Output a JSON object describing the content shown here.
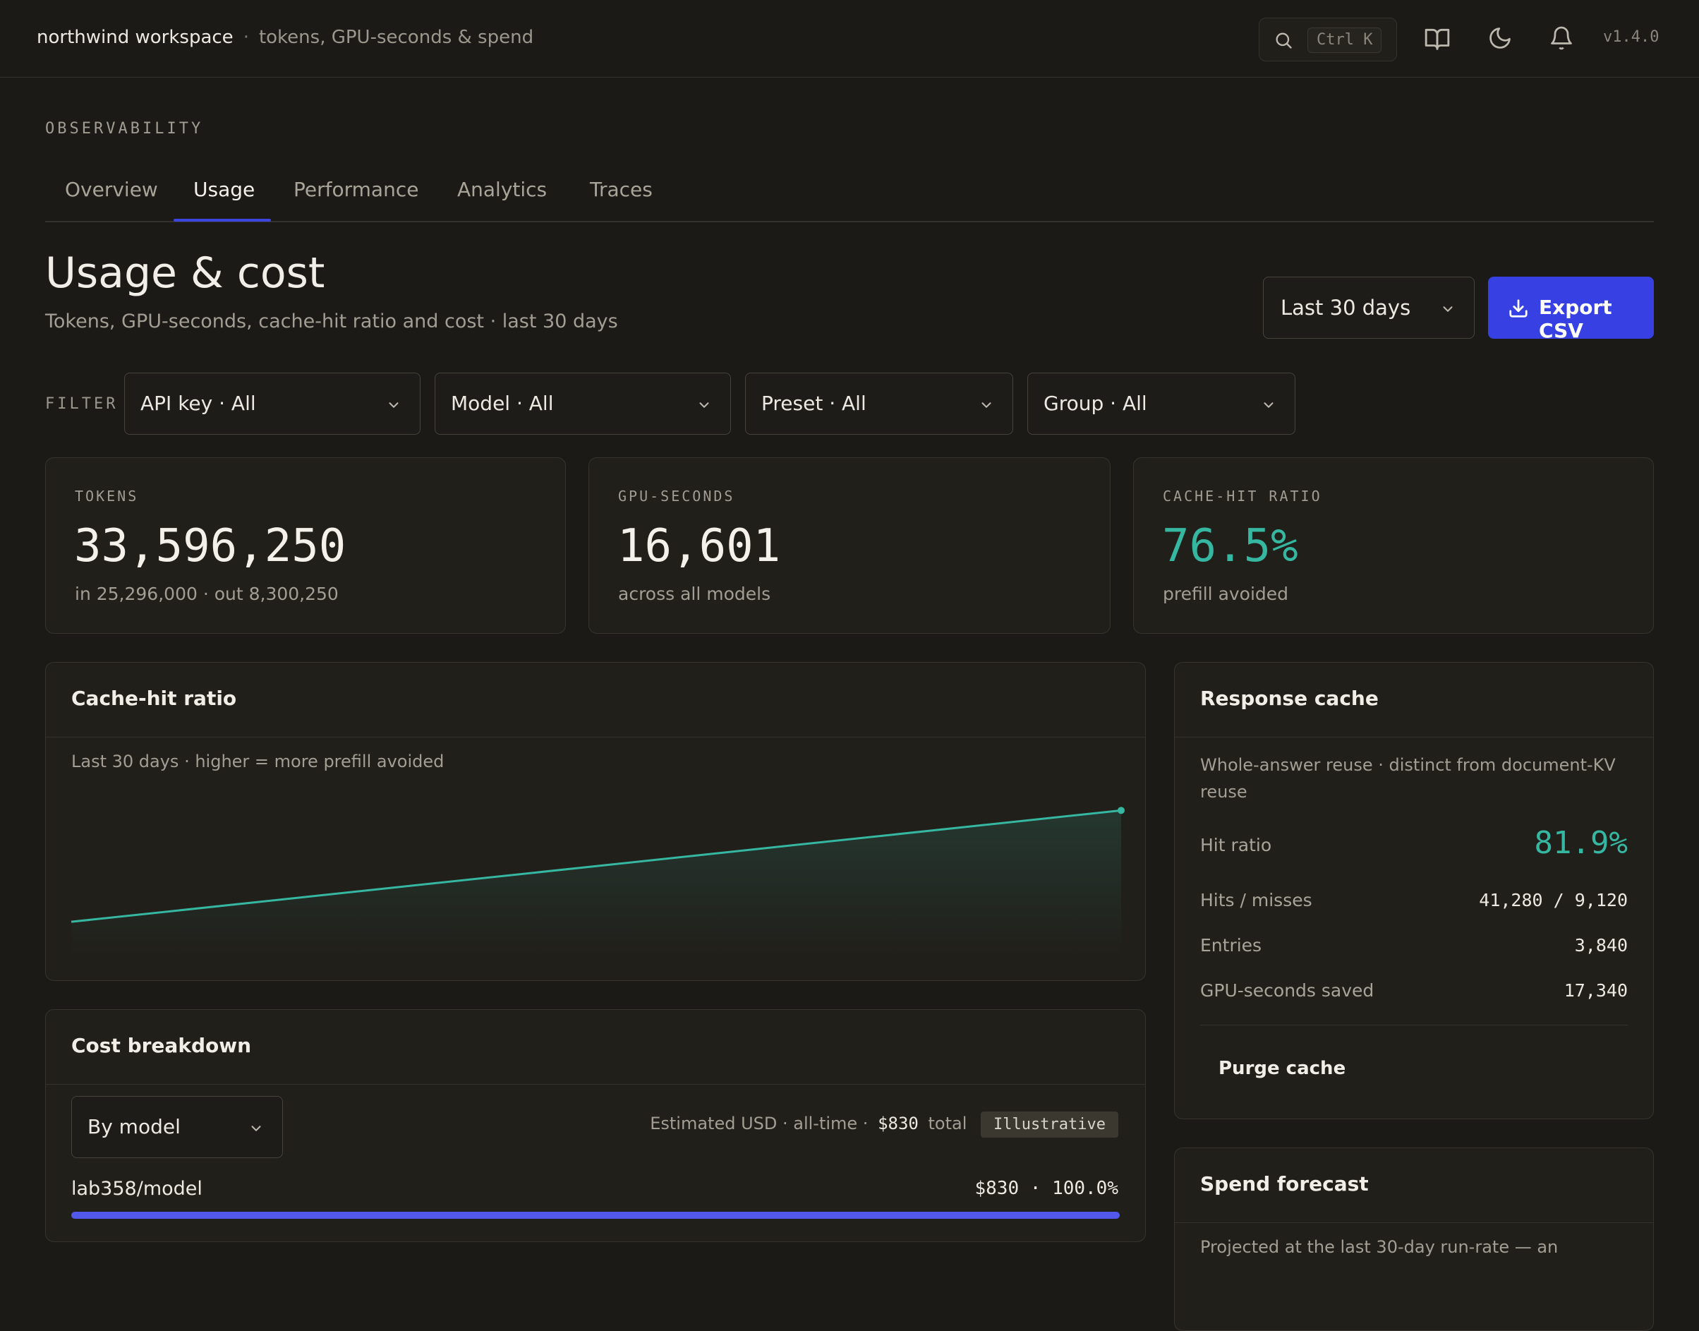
{
  "topbar": {
    "workspace": "northwind workspace",
    "separator": "·",
    "context": "tokens, GPU-seconds & spend",
    "search_shortcut": "Ctrl K",
    "version": "v1.4.0"
  },
  "section_label": "OBSERVABILITY",
  "tabs": [
    {
      "label": "Overview",
      "active": false
    },
    {
      "label": "Usage",
      "active": true
    },
    {
      "label": "Performance",
      "active": false
    },
    {
      "label": "Analytics",
      "active": false
    },
    {
      "label": "Traces",
      "active": false
    }
  ],
  "page": {
    "title": "Usage & cost",
    "subtitle": "Tokens, GPU-seconds, cache-hit ratio and cost · last 30 days",
    "range_value": "Last 30 days",
    "export_label": "Export CSV"
  },
  "filters": {
    "label": "FILTER",
    "items": [
      {
        "label": "API key · All"
      },
      {
        "label": "Model · All"
      },
      {
        "label": "Preset · All"
      },
      {
        "label": "Group · All"
      }
    ]
  },
  "kpis": [
    {
      "label": "TOKENS",
      "value": "33,596,250",
      "sub": "in 25,296,000 · out 8,300,250"
    },
    {
      "label": "GPU-SECONDS",
      "value": "16,601",
      "sub": "across all models"
    },
    {
      "label": "CACHE-HIT RATIO",
      "value": "76.5%",
      "sub": "prefill avoided"
    }
  ],
  "cache_chart": {
    "title": "Cache-hit ratio",
    "note": "Last 30 days · higher = more prefill avoided"
  },
  "chart_data": {
    "type": "area",
    "series": [
      {
        "values": [
          0.6,
          0.765
        ]
      }
    ],
    "xlabel": "",
    "ylabel": "",
    "grid": false
  },
  "response_cache": {
    "title": "Response cache",
    "note_line1": "Whole-answer reuse · distinct from document-KV",
    "note_line2": "reuse",
    "hit_ratio_label": "Hit ratio",
    "hit_ratio_value": "81.9%",
    "rows": [
      {
        "label": "Hits / misses",
        "value": "41,280 / 9,120"
      },
      {
        "label": "Entries",
        "value": "3,840"
      },
      {
        "label": "GPU-seconds saved",
        "value": "17,340"
      }
    ],
    "purge_label": "Purge cache"
  },
  "cost": {
    "title": "Cost breakdown",
    "group_by": "By model",
    "estimate_prefix": "Estimated USD · all-time ·",
    "total_value": "$830",
    "total_label": "total",
    "badge": "Illustrative",
    "rows": [
      {
        "model": "lab358/model",
        "amount": "$830 · 100.0%",
        "share": 1.0
      }
    ]
  },
  "forecast": {
    "title": "Spend forecast",
    "note": "Projected at the last 30-day run-rate — an"
  },
  "colors": {
    "accent": "#3740e3",
    "teal": "#35b7a1",
    "bar": "#5258ea"
  }
}
